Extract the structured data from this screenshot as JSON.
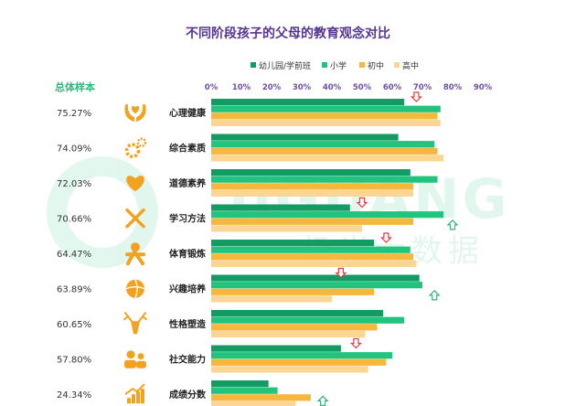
{
  "title": "不同阶段孩子的父母的教育观念对比",
  "watermark": {
    "brand": "JIGUANG",
    "sub": "极光大数据"
  },
  "colors": {
    "title": "#55358f",
    "sample_label": "#2fb67a",
    "axis_text": "#6e4fa0",
    "icon": "#f2a21e",
    "arrow_down": "#e23b3b",
    "arrow_up": "#2fb67a"
  },
  "chart_data": {
    "type": "bar",
    "orientation": "horizontal",
    "title": "不同阶段孩子的父母的教育观念对比",
    "sample_header": "总体样本",
    "xlim": [
      0,
      90
    ],
    "x_ticks": [
      "0%",
      "10%",
      "20%",
      "30%",
      "40%",
      "50%",
      "60%",
      "70%",
      "80%",
      "90%"
    ],
    "legend_position": "top",
    "categories": [
      "心理健康",
      "综合素质",
      "道德素养",
      "学习方法",
      "体育锻炼",
      "兴趣培养",
      "性格塑造",
      "社交能力",
      "成绩分数"
    ],
    "icons": [
      "hands-heart-icon",
      "gears-icon",
      "heart-icon",
      "tools-icon",
      "running-icon",
      "ball-icon",
      "deer-icon",
      "people-group-icon",
      "growth-chart-icon"
    ],
    "overall": [
      "75.27%",
      "74.09%",
      "72.03%",
      "70.66%",
      "64.47%",
      "63.89%",
      "60.65%",
      "57.80%",
      "24.34%"
    ],
    "series": [
      {
        "name": "幼儿园/学前班",
        "color": "#129b63",
        "values": [
          64,
          62,
          66,
          46,
          54,
          69,
          57,
          43,
          19
        ]
      },
      {
        "name": "小学",
        "color": "#22c47d",
        "values": [
          76,
          74,
          75,
          77,
          66,
          70,
          64,
          60,
          22
        ]
      },
      {
        "name": "初中",
        "color": "#f6b73c",
        "values": [
          75,
          75,
          67,
          67,
          67,
          54,
          55,
          58,
          33
        ]
      },
      {
        "name": "高中",
        "color": "#fbd593",
        "values": [
          76,
          77,
          67,
          50,
          68,
          40,
          51,
          52,
          28
        ]
      }
    ],
    "markers": [
      {
        "row": 0,
        "dir": "down",
        "value": 68
      },
      {
        "row": 3,
        "dir": "down",
        "value": 50
      },
      {
        "row": 3,
        "dir": "up",
        "value": 80
      },
      {
        "row": 4,
        "dir": "down",
        "value": 58
      },
      {
        "row": 5,
        "dir": "up",
        "value": 74
      },
      {
        "row": 5,
        "dir": "down",
        "value": 43
      },
      {
        "row": 7,
        "dir": "down",
        "value": 48
      },
      {
        "row": 8,
        "dir": "up",
        "value": 37
      }
    ]
  }
}
